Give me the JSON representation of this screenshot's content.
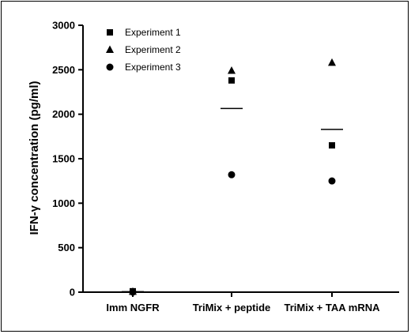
{
  "chart_data": {
    "type": "scatter",
    "title": "",
    "xlabel": "",
    "ylabel": "IFN-γ concentration (pg/ml)",
    "ylim": [
      0,
      3000
    ],
    "yticks": [
      0,
      500,
      1000,
      1500,
      2000,
      2500,
      3000
    ],
    "categories": [
      "Imm NGFR",
      "TriMix + peptide",
      "TriMix + TAA mRNA"
    ],
    "series": [
      {
        "name": "Experiment 1",
        "marker": "square",
        "values": [
          10,
          2380,
          1650
        ]
      },
      {
        "name": "Experiment 2",
        "marker": "triangle",
        "values": [
          5,
          2490,
          2580
        ]
      },
      {
        "name": "Experiment 3",
        "marker": "circle",
        "values": [
          0,
          1320,
          1250
        ]
      }
    ],
    "means": [
      5,
      2065,
      1830
    ],
    "grid": false,
    "legend_position": "top-left",
    "colors": {
      "marker": "#000000",
      "axis": "#000000"
    }
  }
}
